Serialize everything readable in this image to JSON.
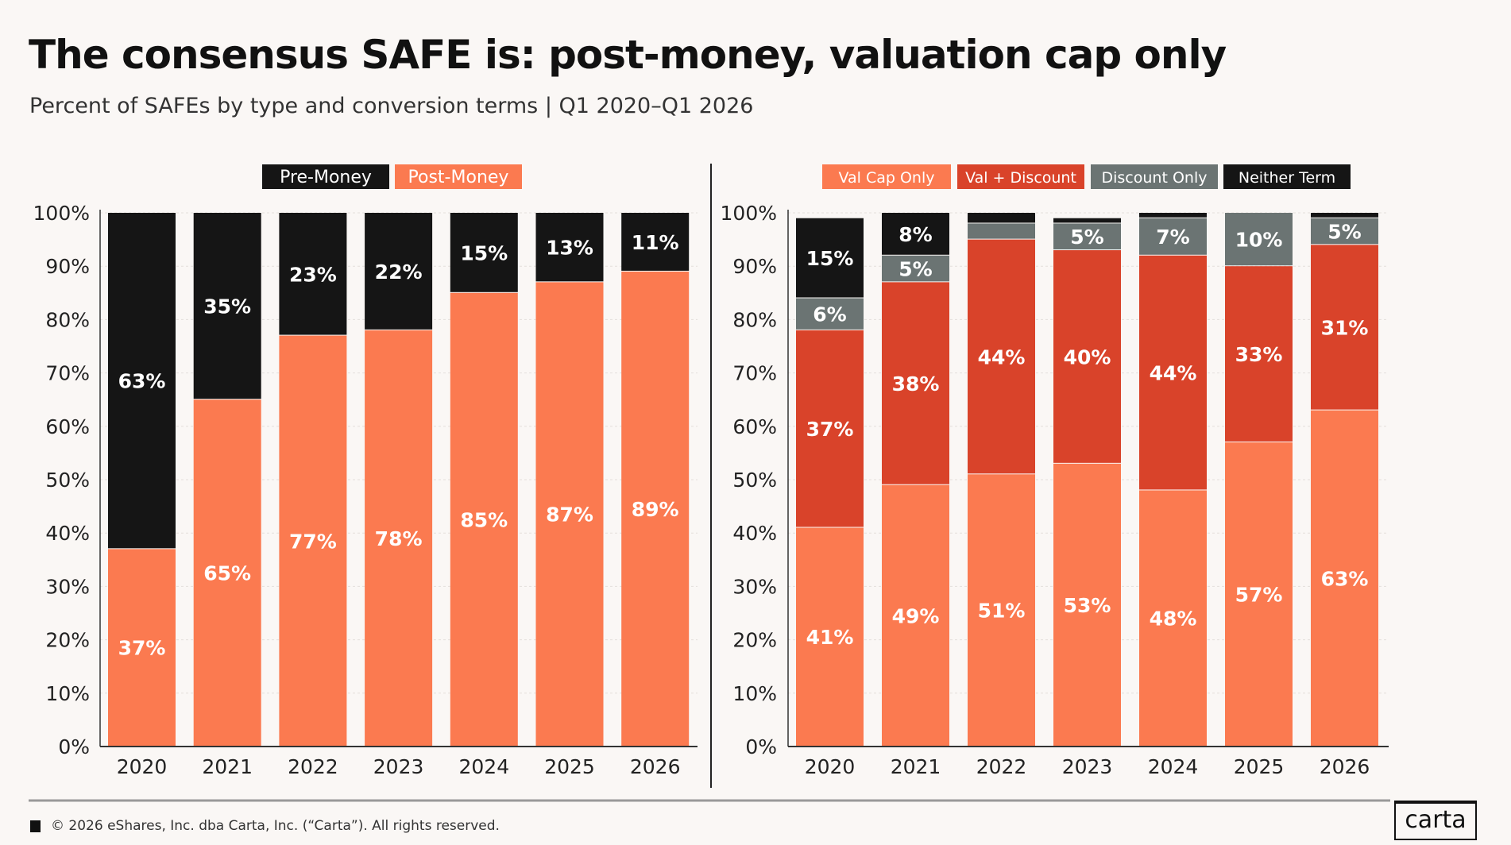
{
  "title": "The consensus SAFE is: post-money, valuation cap only",
  "subtitle": "Percent of SAFEs by type and conversion terms | Q1 2020–Q1 2026",
  "footer": "© 2026 eShares, Inc. dba Carta, Inc. (“Carta”). All rights reserved.",
  "logo": "carta",
  "chart_data": [
    {
      "type": "bar",
      "stacked": true,
      "categories": [
        "2020",
        "2021",
        "2022",
        "2023",
        "2024",
        "2025",
        "2026"
      ],
      "ylim": [
        0,
        100
      ],
      "yticks": [
        "0%",
        "10%",
        "20%",
        "30%",
        "40%",
        "50%",
        "60%",
        "70%",
        "80%",
        "90%",
        "100%"
      ],
      "legend": "top",
      "series": [
        {
          "name": "Post-Money",
          "color": "#fb7a50",
          "values": [
            37,
            65,
            77,
            78,
            85,
            87,
            89
          ],
          "labels": [
            "37%",
            "65%",
            "77%",
            "78%",
            "85%",
            "87%",
            "89%"
          ]
        },
        {
          "name": "Pre-Money",
          "color": "#151515",
          "values": [
            63,
            35,
            23,
            22,
            15,
            13,
            11
          ],
          "labels": [
            "63%",
            "35%",
            "23%",
            "22%",
            "15%",
            "13%",
            "11%"
          ]
        }
      ]
    },
    {
      "type": "bar",
      "stacked": true,
      "categories": [
        "2020",
        "2021",
        "2022",
        "2023",
        "2024",
        "2025",
        "2026"
      ],
      "ylim": [
        0,
        100
      ],
      "yticks": [
        "0%",
        "10%",
        "20%",
        "30%",
        "40%",
        "50%",
        "60%",
        "70%",
        "80%",
        "90%",
        "100%"
      ],
      "legend": "top",
      "series": [
        {
          "name": "Val Cap Only",
          "color": "#fb7a50",
          "values": [
            41,
            49,
            51,
            53,
            48,
            57,
            63
          ],
          "labels": [
            "41%",
            "49%",
            "51%",
            "53%",
            "48%",
            "57%",
            "63%"
          ]
        },
        {
          "name": "Val + Discount",
          "color": "#d9432a",
          "values": [
            37,
            38,
            44,
            40,
            44,
            33,
            31
          ],
          "labels": [
            "37%",
            "38%",
            "44%",
            "40%",
            "44%",
            "33%",
            "31%"
          ]
        },
        {
          "name": "Discount Only",
          "color": "#6b7473",
          "values": [
            6,
            5,
            3,
            5,
            7,
            10,
            5
          ],
          "labels": [
            "6%",
            "5%",
            "",
            "5%",
            "7%",
            "10%",
            "5%"
          ]
        },
        {
          "name": "Neither Term",
          "color": "#151515",
          "values": [
            15,
            8,
            2,
            1,
            1,
            0,
            1
          ],
          "labels": [
            "15%",
            "8%",
            "",
            "",
            "",
            "",
            ""
          ]
        }
      ]
    }
  ]
}
